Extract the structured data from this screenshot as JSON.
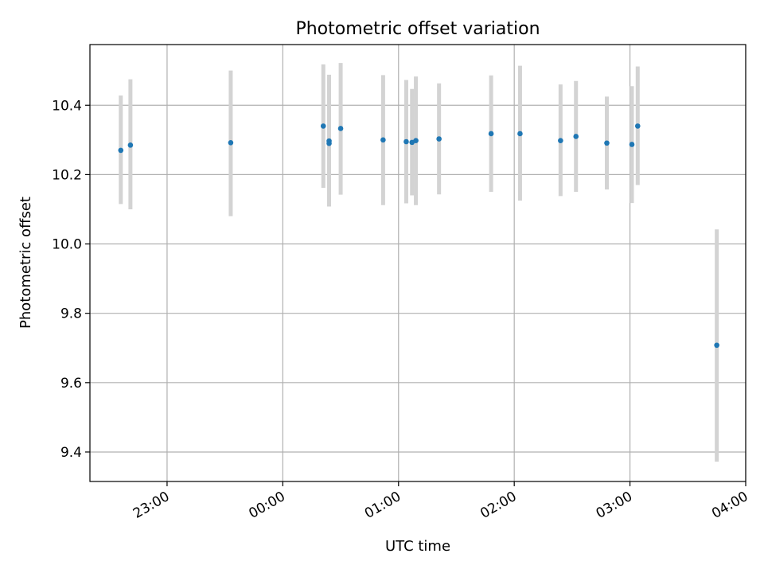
{
  "chart_data": {
    "type": "scatter",
    "title": "Photometric offset variation",
    "xlabel": "UTC time",
    "ylabel": "Photometric offset",
    "x_ticks": [
      "23:00",
      "00:00",
      "01:00",
      "02:00",
      "03:00",
      "04:00"
    ],
    "y_ticks": [
      "9.4",
      "9.6",
      "9.8",
      "10.0",
      "10.2",
      "10.4"
    ],
    "xlim": [
      "22:20",
      "04:00"
    ],
    "ylim": [
      9.315,
      10.575
    ],
    "grid": true,
    "marker_color": "#1f77b4",
    "errorbar_color": "#d3d3d3",
    "points": [
      {
        "time": "22:36",
        "y": 10.27,
        "err_low": 10.115,
        "err_high": 10.428
      },
      {
        "time": "22:41",
        "y": 10.285,
        "err_low": 10.1,
        "err_high": 10.475
      },
      {
        "time": "23:33",
        "y": 10.292,
        "err_low": 10.08,
        "err_high": 10.5
      },
      {
        "time": "00:21",
        "y": 10.34,
        "err_low": 10.162,
        "err_high": 10.518
      },
      {
        "time": "00:24",
        "y": 10.297,
        "err_low": 10.108,
        "err_high": 10.488
      },
      {
        "time": "00:24",
        "y": 10.29,
        "err_low": 10.108,
        "err_high": 10.48
      },
      {
        "time": "00:30",
        "y": 10.333,
        "err_low": 10.142,
        "err_high": 10.522
      },
      {
        "time": "00:52",
        "y": 10.3,
        "err_low": 10.112,
        "err_high": 10.487
      },
      {
        "time": "01:04",
        "y": 10.295,
        "err_low": 10.117,
        "err_high": 10.473
      },
      {
        "time": "01:07",
        "y": 10.293,
        "err_low": 10.14,
        "err_high": 10.447
      },
      {
        "time": "01:09",
        "y": 10.298,
        "err_low": 10.112,
        "err_high": 10.483
      },
      {
        "time": "01:21",
        "y": 10.303,
        "err_low": 10.143,
        "err_high": 10.463
      },
      {
        "time": "01:48",
        "y": 10.318,
        "err_low": 10.15,
        "err_high": 10.486
      },
      {
        "time": "02:03",
        "y": 10.318,
        "err_low": 10.125,
        "err_high": 10.514
      },
      {
        "time": "02:24",
        "y": 10.298,
        "err_low": 10.138,
        "err_high": 10.46
      },
      {
        "time": "02:32",
        "y": 10.31,
        "err_low": 10.15,
        "err_high": 10.47
      },
      {
        "time": "02:48",
        "y": 10.291,
        "err_low": 10.157,
        "err_high": 10.425
      },
      {
        "time": "03:01",
        "y": 10.287,
        "err_low": 10.118,
        "err_high": 10.455
      },
      {
        "time": "03:04",
        "y": 10.34,
        "err_low": 10.17,
        "err_high": 10.512
      },
      {
        "time": "03:45",
        "y": 9.708,
        "err_low": 9.372,
        "err_high": 10.042
      }
    ]
  }
}
